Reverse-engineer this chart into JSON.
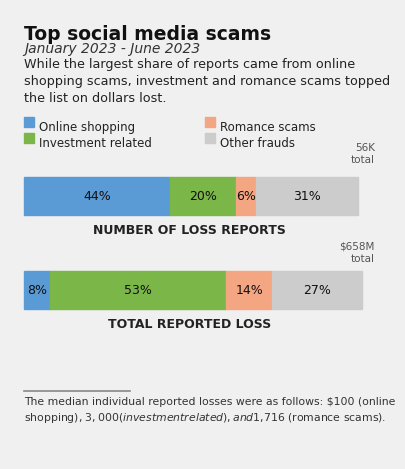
{
  "title": "Top social media scams",
  "subtitle": "January 2023 - June 2023",
  "description": "While the largest share of reports came from online\nshopping scams, investment and romance scams topped\nthe list on dollars lost.",
  "legend_items": [
    {
      "label": "Online shopping",
      "color": "#5b9bd5"
    },
    {
      "label": "Investment related",
      "color": "#7ab648"
    },
    {
      "label": "Romance scams",
      "color": "#f4a582"
    },
    {
      "label": "Other frauds",
      "color": "#cccccc"
    }
  ],
  "bar1_label": "NUMBER OF LOSS REPORTS",
  "bar1_total": "56K\ntotal",
  "bar1_values": [
    44,
    20,
    6,
    31
  ],
  "bar1_colors": [
    "#5b9bd5",
    "#7ab648",
    "#f4a582",
    "#cccccc"
  ],
  "bar1_pct_labels": [
    "44%",
    "20%",
    "6%",
    "31%"
  ],
  "bar2_label": "TOTAL REPORTED LOSS",
  "bar2_total": "$658M\ntotal",
  "bar2_values": [
    8,
    53,
    14,
    27
  ],
  "bar2_colors": [
    "#5b9bd5",
    "#7ab648",
    "#f4a582",
    "#cccccc"
  ],
  "bar2_pct_labels": [
    "8%",
    "53%",
    "14%",
    "27%"
  ],
  "footnote": "The median individual reported losses were as follows: $100 (online\nshopping), $3,000 (investment related), and $1,716 (romance scams).",
  "bg_color": "#f0f0f0"
}
